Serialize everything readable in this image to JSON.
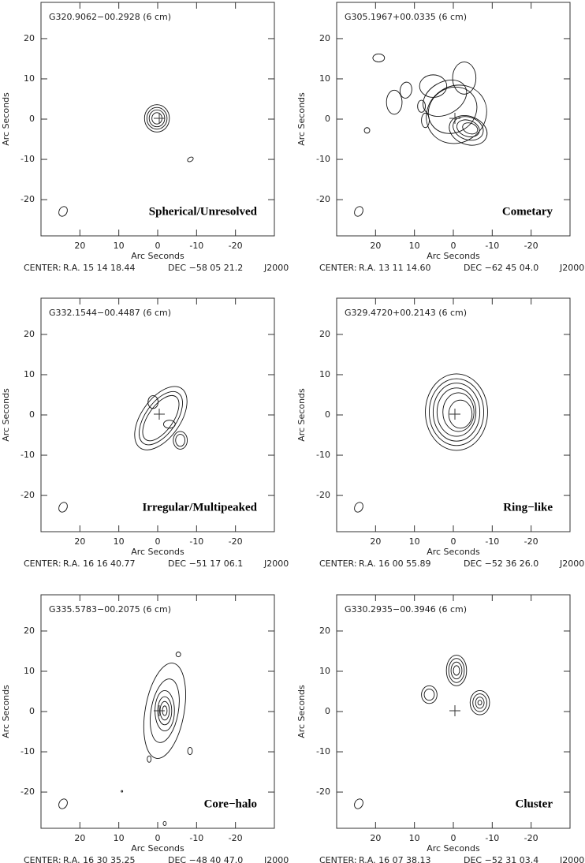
{
  "chart_data": [
    {
      "type": "contour",
      "title": "G320.9062−00.2928 (6 cm)",
      "label": "Spherical/Unresolved",
      "xlabel": "Arc Seconds",
      "ylabel": "Arc Seconds",
      "center_label": "CENTER:",
      "ra": "R.A. 15 14 18.44",
      "dec": "DEC   −58 05 21.2",
      "epoch": "J2000",
      "xlim": [
        30,
        -30
      ],
      "ylim": [
        -29,
        29
      ],
      "xticks": [
        20,
        10,
        0,
        -10,
        -20
      ],
      "yticks": [
        20,
        10,
        0,
        -10,
        -20
      ]
    },
    {
      "type": "contour",
      "title": "G305.1967+00.0335 (6 cm)",
      "label": "Cometary",
      "xlabel": "Arc Seconds",
      "ylabel": "Arc Seconds",
      "center_label": "CENTER:",
      "ra": "R.A. 13 11 14.60",
      "dec": "DEC   −62 45 04.0",
      "epoch": "J2000",
      "xlim": [
        30,
        -30
      ],
      "ylim": [
        -29,
        29
      ],
      "xticks": [
        20,
        10,
        0,
        -10,
        -20
      ],
      "yticks": [
        20,
        10,
        0,
        -10,
        -20
      ]
    },
    {
      "type": "contour",
      "title": "G332.1544−00.4487 (6 cm)",
      "label": "Irregular/Multipeaked",
      "xlabel": "Arc Seconds",
      "ylabel": "Arc Seconds",
      "center_label": "CENTER:",
      "ra": "R.A. 16 16 40.77",
      "dec": "DEC   −51 17 06.1",
      "epoch": "J2000",
      "xlim": [
        30,
        -30
      ],
      "ylim": [
        -29,
        29
      ],
      "xticks": [
        20,
        10,
        0,
        -10,
        -20
      ],
      "yticks": [
        20,
        10,
        0,
        -10,
        -20
      ]
    },
    {
      "type": "contour",
      "title": "G329.4720+00.2143 (6 cm)",
      "label": "Ring−like",
      "xlabel": "Arc Seconds",
      "ylabel": "Arc Seconds",
      "center_label": "CENTER:",
      "ra": "R.A. 16 00 55.89",
      "dec": "DEC   −52 36 26.0",
      "epoch": "J2000",
      "xlim": [
        30,
        -30
      ],
      "ylim": [
        -29,
        29
      ],
      "xticks": [
        20,
        10,
        0,
        -10,
        -20
      ],
      "yticks": [
        20,
        10,
        0,
        -10,
        -20
      ]
    },
    {
      "type": "contour",
      "title": "G335.5783−00.2075 (6 cm)",
      "label": "Core−halo",
      "xlabel": "Arc Seconds",
      "ylabel": "Arc Seconds",
      "center_label": "CENTER:",
      "ra": "R.A. 16 30 35.25",
      "dec": "DEC   −48 40 47.0",
      "epoch": "J2000",
      "xlim": [
        30,
        -30
      ],
      "ylim": [
        -29,
        29
      ],
      "xticks": [
        20,
        10,
        0,
        -10,
        -20
      ],
      "yticks": [
        20,
        10,
        0,
        -10,
        -20
      ]
    },
    {
      "type": "contour",
      "title": "G330.2935−00.3946 (6 cm)",
      "label": "Cluster",
      "xlabel": "Arc Seconds",
      "ylabel": "Arc Seconds",
      "center_label": "CENTER:",
      "ra": "R.A. 16 07 38.13",
      "dec": "DEC   −52 31 03.4",
      "epoch": "J2000",
      "xlim": [
        30,
        -30
      ],
      "ylim": [
        -29,
        29
      ],
      "xticks": [
        20,
        10,
        0,
        -10,
        -20
      ],
      "yticks": [
        20,
        10,
        0,
        -10,
        -20
      ]
    }
  ]
}
